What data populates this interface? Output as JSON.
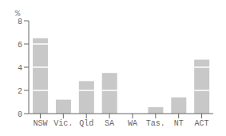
{
  "chart_data": {
    "type": "bar",
    "categories": [
      "NSW",
      "Vic.",
      "Qld",
      "SA",
      "WA",
      "Tas.",
      "NT",
      "ACT"
    ],
    "values": [
      6.5,
      1.2,
      2.8,
      3.5,
      0.0,
      0.55,
      1.4,
      4.65
    ],
    "color": "#c8c8c8",
    "ylabel": "%",
    "ylim": [
      0,
      8
    ],
    "yticks": [
      0,
      2,
      4,
      6,
      8
    ],
    "grid": false
  }
}
